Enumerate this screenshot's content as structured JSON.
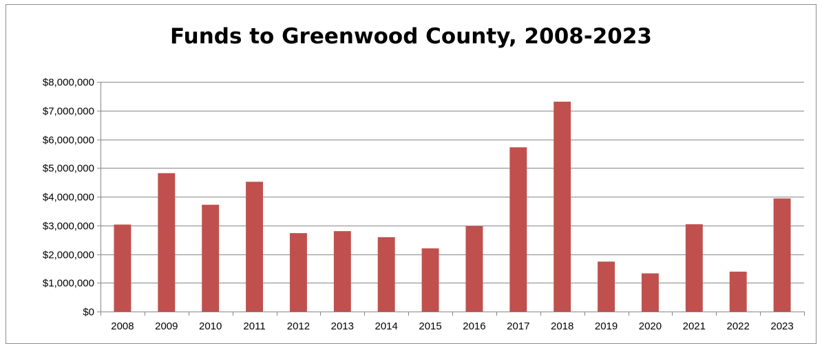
{
  "chart_data": {
    "type": "bar",
    "title": "Funds to Greenwood County, 2008-2023",
    "xlabel": "",
    "ylabel": "",
    "categories": [
      "2008",
      "2009",
      "2010",
      "2011",
      "2012",
      "2013",
      "2014",
      "2015",
      "2016",
      "2017",
      "2018",
      "2019",
      "2020",
      "2021",
      "2022",
      "2023"
    ],
    "values": [
      3030000,
      4820000,
      3720000,
      4520000,
      2730000,
      2800000,
      2590000,
      2200000,
      2970000,
      5720000,
      7310000,
      1740000,
      1330000,
      3040000,
      1390000,
      3940000
    ],
    "ylim": [
      0,
      8000000
    ],
    "yticks": [
      0,
      1000000,
      2000000,
      3000000,
      4000000,
      5000000,
      6000000,
      7000000,
      8000000
    ],
    "ytick_labels": [
      "$0",
      "$1,000,000",
      "$2,000,000",
      "$3,000,000",
      "$4,000,000",
      "$5,000,000",
      "$6,000,000",
      "$7,000,000",
      "$8,000,000"
    ],
    "grid": true,
    "legend": "none",
    "colors": {
      "bar": "#c0504d",
      "grid": "#868686",
      "axis": "#868686"
    }
  }
}
